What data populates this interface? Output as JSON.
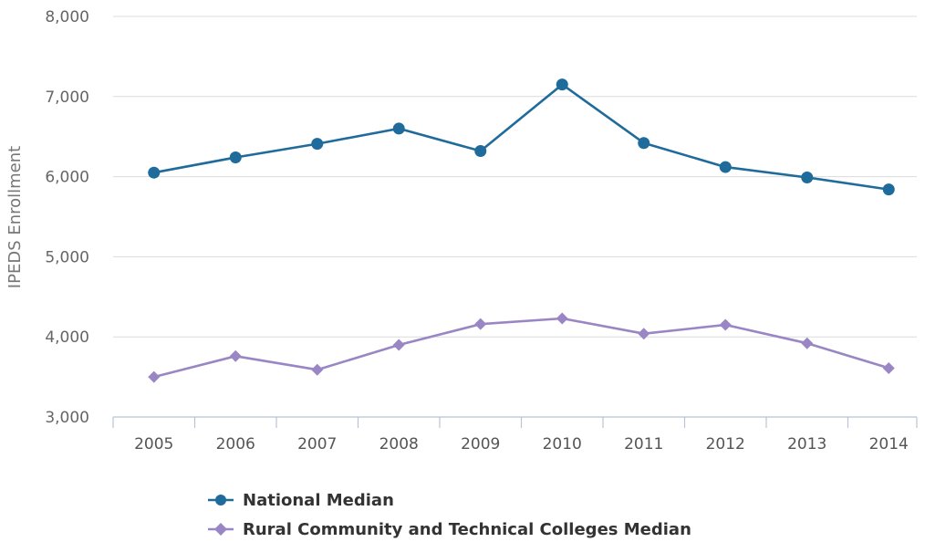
{
  "chart_data": {
    "type": "line",
    "categories": [
      "2005",
      "2006",
      "2007",
      "2008",
      "2009",
      "2010",
      "2011",
      "2012",
      "2013",
      "2014"
    ],
    "series": [
      {
        "name": "National Median",
        "color": "#1f6b9b",
        "marker": "circle",
        "values": [
          6050,
          6240,
          6410,
          6600,
          6320,
          7150,
          6420,
          6120,
          5990,
          5840
        ]
      },
      {
        "name": "Rural Community and Technical Colleges Median",
        "color": "#9a86c4",
        "marker": "diamond",
        "values": [
          3500,
          3760,
          3590,
          3900,
          4160,
          4230,
          4040,
          4150,
          3920,
          3610
        ]
      }
    ],
    "title": "",
    "xlabel": "",
    "ylabel": "IPEDS Enrollment",
    "ylim": [
      3000,
      8000
    ],
    "yticks": [
      "3,000",
      "4,000",
      "5,000",
      "6,000",
      "7,000",
      "8,000"
    ],
    "ytick_values": [
      3000,
      4000,
      5000,
      6000,
      7000,
      8000
    ],
    "grid": true,
    "legend_position": "bottom-center"
  }
}
